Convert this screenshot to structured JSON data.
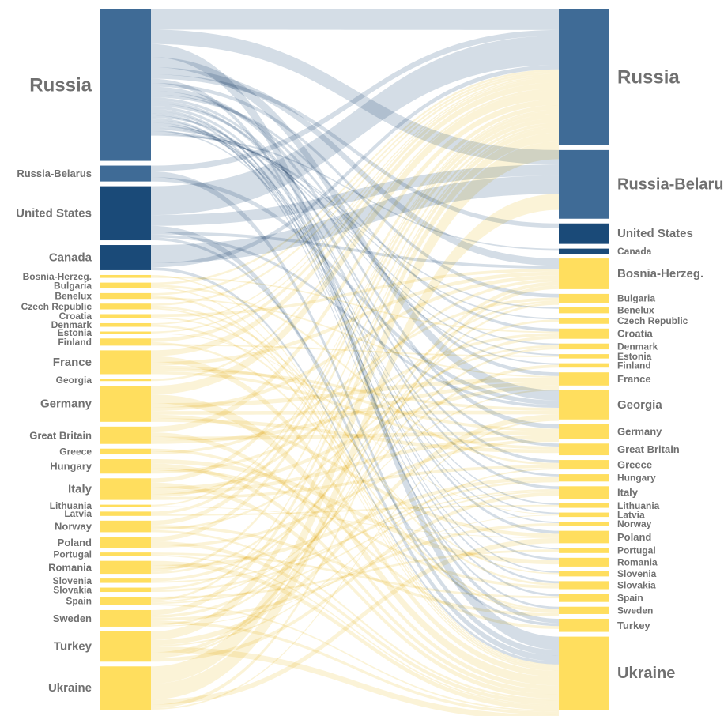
{
  "colors": {
    "russia_bloc": "#3F6B96",
    "nato_west": "#1A4A78",
    "others": "#FFDE5E",
    "flow_blue": "#9FB4C8",
    "flow_yellow": "#F6E3A0",
    "label": "#707070"
  },
  "source_nodes": [
    {
      "id": "s-russia",
      "label": "Russia",
      "value": 210,
      "group": "russia_bloc"
    },
    {
      "id": "s-russia-belarus",
      "label": "Russia-Belarus",
      "value": 22,
      "group": "russia_bloc"
    },
    {
      "id": "s-united-states",
      "label": "United States",
      "value": 75,
      "group": "nato_west"
    },
    {
      "id": "s-canada",
      "label": "Canada",
      "value": 35,
      "group": "nato_west"
    },
    {
      "id": "s-bosnia",
      "label": "Bosnia-Herzeg.",
      "value": 4,
      "group": "others"
    },
    {
      "id": "s-bulgaria",
      "label": "Bulgaria",
      "value": 8,
      "group": "others"
    },
    {
      "id": "s-benelux",
      "label": "Benelux",
      "value": 8,
      "group": "others"
    },
    {
      "id": "s-czech",
      "label": "Czech Republic",
      "value": 8,
      "group": "others"
    },
    {
      "id": "s-croatia",
      "label": "Croatia",
      "value": 6,
      "group": "others"
    },
    {
      "id": "s-denmark",
      "label": "Denmark",
      "value": 5,
      "group": "others"
    },
    {
      "id": "s-estonia",
      "label": "Estonia",
      "value": 3,
      "group": "others"
    },
    {
      "id": "s-finland",
      "label": "Finland",
      "value": 10,
      "group": "others"
    },
    {
      "id": "s-france",
      "label": "France",
      "value": 33,
      "group": "others"
    },
    {
      "id": "s-georgia",
      "label": "Georgia",
      "value": 3,
      "group": "others"
    },
    {
      "id": "s-germany",
      "label": "Germany",
      "value": 50,
      "group": "others"
    },
    {
      "id": "s-great-britain",
      "label": "Great Britain",
      "value": 24,
      "group": "others"
    },
    {
      "id": "s-greece",
      "label": "Greece",
      "value": 8,
      "group": "others"
    },
    {
      "id": "s-hungary",
      "label": "Hungary",
      "value": 20,
      "group": "others"
    },
    {
      "id": "s-italy",
      "label": "Italy",
      "value": 30,
      "group": "others"
    },
    {
      "id": "s-lithuania",
      "label": "Lithuania",
      "value": 3,
      "group": "others"
    },
    {
      "id": "s-latvia",
      "label": "Latvia",
      "value": 6,
      "group": "others"
    },
    {
      "id": "s-norway",
      "label": "Norway",
      "value": 16,
      "group": "others"
    },
    {
      "id": "s-poland",
      "label": "Poland",
      "value": 15,
      "group": "others"
    },
    {
      "id": "s-portugal",
      "label": "Portugal",
      "value": 5,
      "group": "others"
    },
    {
      "id": "s-romania",
      "label": "Romania",
      "value": 18,
      "group": "others"
    },
    {
      "id": "s-slovenia",
      "label": "Slovenia",
      "value": 6,
      "group": "others"
    },
    {
      "id": "s-slovakia",
      "label": "Slovakia",
      "value": 6,
      "group": "others"
    },
    {
      "id": "s-spain",
      "label": "Spain",
      "value": 12,
      "group": "others"
    },
    {
      "id": "s-sweden",
      "label": "Sweden",
      "value": 23,
      "group": "others"
    },
    {
      "id": "s-turkey",
      "label": "Turkey",
      "value": 42,
      "group": "others"
    },
    {
      "id": "s-ukraine",
      "label": "Ukraine",
      "value": 60,
      "group": "others"
    }
  ],
  "target_nodes": [
    {
      "id": "t-russia",
      "label": "Russia",
      "value": 186,
      "group": "russia_bloc"
    },
    {
      "id": "t-russia-belarus",
      "label": "Russia-Belarus",
      "value": 94,
      "group": "russia_bloc"
    },
    {
      "id": "t-united-states",
      "label": "United States",
      "value": 28,
      "group": "nato_west"
    },
    {
      "id": "t-canada",
      "label": "Canada",
      "value": 7,
      "group": "nato_west"
    },
    {
      "id": "t-bosnia",
      "label": "Bosnia-Herzeg.",
      "value": 42,
      "group": "others"
    },
    {
      "id": "t-bulgaria",
      "label": "Bulgaria",
      "value": 12,
      "group": "others"
    },
    {
      "id": "t-benelux",
      "label": "Benelux",
      "value": 8,
      "group": "others"
    },
    {
      "id": "t-czech",
      "label": "Czech Republic",
      "value": 8,
      "group": "others"
    },
    {
      "id": "t-croatia",
      "label": "Croatia",
      "value": 14,
      "group": "others"
    },
    {
      "id": "t-denmark",
      "label": "Denmark",
      "value": 8,
      "group": "others"
    },
    {
      "id": "t-estonia",
      "label": "Estonia",
      "value": 6,
      "group": "others"
    },
    {
      "id": "t-finland",
      "label": "Finland",
      "value": 6,
      "group": "others"
    },
    {
      "id": "t-france",
      "label": "France",
      "value": 18,
      "group": "others"
    },
    {
      "id": "t-georgia",
      "label": "Georgia",
      "value": 40,
      "group": "others"
    },
    {
      "id": "t-germany",
      "label": "Germany",
      "value": 20,
      "group": "others"
    },
    {
      "id": "t-great-britain",
      "label": "Great Britain",
      "value": 16,
      "group": "others"
    },
    {
      "id": "t-greece",
      "label": "Greece",
      "value": 13,
      "group": "others"
    },
    {
      "id": "t-hungary",
      "label": "Hungary",
      "value": 10,
      "group": "others"
    },
    {
      "id": "t-italy",
      "label": "Italy",
      "value": 17,
      "group": "others"
    },
    {
      "id": "t-lithuania",
      "label": "Lithuania",
      "value": 6,
      "group": "others"
    },
    {
      "id": "t-latvia",
      "label": "Latvia",
      "value": 6,
      "group": "others"
    },
    {
      "id": "t-norway",
      "label": "Norway",
      "value": 6,
      "group": "others"
    },
    {
      "id": "t-poland",
      "label": "Poland",
      "value": 17,
      "group": "others"
    },
    {
      "id": "t-portugal",
      "label": "Portugal",
      "value": 7,
      "group": "others"
    },
    {
      "id": "t-romania",
      "label": "Romania",
      "value": 12,
      "group": "others"
    },
    {
      "id": "t-slovenia",
      "label": "Slovenia",
      "value": 7,
      "group": "others"
    },
    {
      "id": "t-slovakia",
      "label": "Slovakia",
      "value": 11,
      "group": "others"
    },
    {
      "id": "t-spain",
      "label": "Spain",
      "value": 11,
      "group": "others"
    },
    {
      "id": "t-sweden",
      "label": "Sweden",
      "value": 10,
      "group": "others"
    },
    {
      "id": "t-turkey",
      "label": "Turkey",
      "value": 18,
      "group": "others"
    },
    {
      "id": "t-ukraine",
      "label": "Ukraine",
      "value": 100,
      "group": "others"
    }
  ],
  "links": [
    {
      "source": "s-russia",
      "target": "t-russia",
      "value": 28
    },
    {
      "source": "s-russia",
      "target": "t-russia-belarus",
      "value": 20
    },
    {
      "source": "s-russia",
      "target": "t-ukraine",
      "value": 18
    },
    {
      "source": "s-russia",
      "target": "t-georgia",
      "value": 14
    },
    {
      "source": "s-russia",
      "target": "t-bosnia",
      "value": 10
    },
    {
      "source": "s-russia",
      "target": "t-united-states",
      "value": 6
    },
    {
      "source": "s-russia",
      "target": "t-turkey",
      "value": 6
    },
    {
      "source": "s-russia",
      "target": "t-bulgaria",
      "value": 5
    },
    {
      "source": "s-russia",
      "target": "t-germany",
      "value": 6
    },
    {
      "source": "s-russia",
      "target": "t-france",
      "value": 5
    },
    {
      "source": "s-russia",
      "target": "t-croatia",
      "value": 4
    },
    {
      "source": "s-russia",
      "target": "t-greece",
      "value": 4
    },
    {
      "source": "s-russia",
      "target": "t-italy",
      "value": 4
    },
    {
      "source": "s-russia",
      "target": "t-great-britain",
      "value": 4
    },
    {
      "source": "s-russia",
      "target": "t-poland",
      "value": 4
    },
    {
      "source": "s-russia",
      "target": "t-slovakia",
      "value": 3
    },
    {
      "source": "s-russia",
      "target": "t-romania",
      "value": 3
    },
    {
      "source": "s-russia",
      "target": "t-spain",
      "value": 3
    },
    {
      "source": "s-russia",
      "target": "t-hungary",
      "value": 3
    },
    {
      "source": "s-russia",
      "target": "t-sweden",
      "value": 3
    },
    {
      "source": "s-russia",
      "target": "t-portugal",
      "value": 2
    },
    {
      "source": "s-russia",
      "target": "t-slovenia",
      "value": 2
    },
    {
      "source": "s-russia",
      "target": "t-lithuania",
      "value": 2
    },
    {
      "source": "s-russia",
      "target": "t-latvia",
      "value": 2
    },
    {
      "source": "s-russia",
      "target": "t-estonia",
      "value": 2
    },
    {
      "source": "s-russia",
      "target": "t-finland",
      "value": 2
    },
    {
      "source": "s-russia",
      "target": "t-denmark",
      "value": 2
    },
    {
      "source": "s-russia",
      "target": "t-norway",
      "value": 2
    },
    {
      "source": "s-russia",
      "target": "t-czech",
      "value": 2
    },
    {
      "source": "s-russia",
      "target": "t-benelux",
      "value": 2
    },
    {
      "source": "s-russia",
      "target": "t-canada",
      "value": 2
    },
    {
      "source": "s-russia-belarus",
      "target": "t-russia",
      "value": 8
    },
    {
      "source": "s-russia-belarus",
      "target": "t-ukraine",
      "value": 8
    },
    {
      "source": "s-russia-belarus",
      "target": "t-georgia",
      "value": 6
    },
    {
      "source": "s-united-states",
      "target": "t-russia",
      "value": 40
    },
    {
      "source": "s-united-states",
      "target": "t-russia-belarus",
      "value": 15
    },
    {
      "source": "s-united-states",
      "target": "t-ukraine",
      "value": 8
    },
    {
      "source": "s-united-states",
      "target": "t-bosnia",
      "value": 4
    },
    {
      "source": "s-united-states",
      "target": "t-georgia",
      "value": 4
    },
    {
      "source": "s-united-states",
      "target": "t-turkey",
      "value": 4
    },
    {
      "source": "s-canada",
      "target": "t-russia-belarus",
      "value": 25
    },
    {
      "source": "s-canada",
      "target": "t-russia",
      "value": 6
    },
    {
      "source": "s-canada",
      "target": "t-ukraine",
      "value": 4
    },
    {
      "source": "s-bosnia",
      "target": "t-ukraine",
      "value": 2
    },
    {
      "source": "s-bosnia",
      "target": "t-croatia",
      "value": 2
    },
    {
      "source": "s-bulgaria",
      "target": "t-russia",
      "value": 3
    },
    {
      "source": "s-bulgaria",
      "target": "t-greece",
      "value": 3
    },
    {
      "source": "s-bulgaria",
      "target": "t-ukraine",
      "value": 2
    },
    {
      "source": "s-benelux",
      "target": "t-russia",
      "value": 3
    },
    {
      "source": "s-benelux",
      "target": "t-ukraine",
      "value": 3
    },
    {
      "source": "s-benelux",
      "target": "t-france",
      "value": 2
    },
    {
      "source": "s-czech",
      "target": "t-russia",
      "value": 3
    },
    {
      "source": "s-czech",
      "target": "t-slovakia",
      "value": 3
    },
    {
      "source": "s-czech",
      "target": "t-ukraine",
      "value": 2
    },
    {
      "source": "s-croatia",
      "target": "t-bosnia",
      "value": 4
    },
    {
      "source": "s-croatia",
      "target": "t-slovenia",
      "value": 2
    },
    {
      "source": "s-denmark",
      "target": "t-russia",
      "value": 2
    },
    {
      "source": "s-denmark",
      "target": "t-sweden",
      "value": 3
    },
    {
      "source": "s-estonia",
      "target": "t-russia",
      "value": 2
    },
    {
      "source": "s-estonia",
      "target": "t-latvia",
      "value": 1
    },
    {
      "source": "s-finland",
      "target": "t-russia",
      "value": 5
    },
    {
      "source": "s-finland",
      "target": "t-sweden",
      "value": 3
    },
    {
      "source": "s-finland",
      "target": "t-estonia",
      "value": 2
    },
    {
      "source": "s-france",
      "target": "t-russia",
      "value": 8
    },
    {
      "source": "s-france",
      "target": "t-ukraine",
      "value": 8
    },
    {
      "source": "s-france",
      "target": "t-bosnia",
      "value": 5
    },
    {
      "source": "s-france",
      "target": "t-germany",
      "value": 4
    },
    {
      "source": "s-france",
      "target": "t-georgia",
      "value": 4
    },
    {
      "source": "s-france",
      "target": "t-great-britain",
      "value": 4
    },
    {
      "source": "s-georgia",
      "target": "t-russia",
      "value": 3
    },
    {
      "source": "s-germany",
      "target": "t-russia",
      "value": 12
    },
    {
      "source": "s-germany",
      "target": "t-ukraine",
      "value": 12
    },
    {
      "source": "s-germany",
      "target": "t-france",
      "value": 6
    },
    {
      "source": "s-germany",
      "target": "t-bosnia",
      "value": 5
    },
    {
      "source": "s-germany",
      "target": "t-georgia",
      "value": 5
    },
    {
      "source": "s-germany",
      "target": "t-poland",
      "value": 5
    },
    {
      "source": "s-germany",
      "target": "t-great-britain",
      "value": 5
    },
    {
      "source": "s-great-britain",
      "target": "t-russia",
      "value": 8
    },
    {
      "source": "s-great-britain",
      "target": "t-ukraine",
      "value": 6
    },
    {
      "source": "s-great-britain",
      "target": "t-germany",
      "value": 5
    },
    {
      "source": "s-great-britain",
      "target": "t-france",
      "value": 5
    },
    {
      "source": "s-greece",
      "target": "t-turkey",
      "value": 4
    },
    {
      "source": "s-greece",
      "target": "t-bulgaria",
      "value": 4
    },
    {
      "source": "s-hungary",
      "target": "t-romania",
      "value": 6
    },
    {
      "source": "s-hungary",
      "target": "t-ukraine",
      "value": 6
    },
    {
      "source": "s-hungary",
      "target": "t-slovakia",
      "value": 4
    },
    {
      "source": "s-hungary",
      "target": "t-croatia",
      "value": 4
    },
    {
      "source": "s-italy",
      "target": "t-russia",
      "value": 6
    },
    {
      "source": "s-italy",
      "target": "t-ukraine",
      "value": 6
    },
    {
      "source": "s-italy",
      "target": "t-france",
      "value": 5
    },
    {
      "source": "s-italy",
      "target": "t-germany",
      "value": 5
    },
    {
      "source": "s-italy",
      "target": "t-bosnia",
      "value": 4
    },
    {
      "source": "s-italy",
      "target": "t-greece",
      "value": 4
    },
    {
      "source": "s-lithuania",
      "target": "t-russia",
      "value": 2
    },
    {
      "source": "s-lithuania",
      "target": "t-poland",
      "value": 1
    },
    {
      "source": "s-latvia",
      "target": "t-russia",
      "value": 4
    },
    {
      "source": "s-latvia",
      "target": "t-lithuania",
      "value": 2
    },
    {
      "source": "s-norway",
      "target": "t-russia",
      "value": 6
    },
    {
      "source": "s-norway",
      "target": "t-sweden",
      "value": 4
    },
    {
      "source": "s-norway",
      "target": "t-denmark",
      "value": 3
    },
    {
      "source": "s-norway",
      "target": "t-ukraine",
      "value": 3
    },
    {
      "source": "s-poland",
      "target": "t-russia",
      "value": 6
    },
    {
      "source": "s-poland",
      "target": "t-ukraine",
      "value": 5
    },
    {
      "source": "s-poland",
      "target": "t-germany",
      "value": 4
    },
    {
      "source": "s-portugal",
      "target": "t-spain",
      "value": 3
    },
    {
      "source": "s-portugal",
      "target": "t-ukraine",
      "value": 2
    },
    {
      "source": "s-romania",
      "target": "t-ukraine",
      "value": 6
    },
    {
      "source": "s-romania",
      "target": "t-hungary",
      "value": 5
    },
    {
      "source": "s-romania",
      "target": "t-russia",
      "value": 4
    },
    {
      "source": "s-romania",
      "target": "t-bulgaria",
      "value": 3
    },
    {
      "source": "s-slovenia",
      "target": "t-croatia",
      "value": 4
    },
    {
      "source": "s-slovenia",
      "target": "t-italy",
      "value": 2
    },
    {
      "source": "s-slovakia",
      "target": "t-czech",
      "value": 3
    },
    {
      "source": "s-slovakia",
      "target": "t-hungary",
      "value": 3
    },
    {
      "source": "s-spain",
      "target": "t-portugal",
      "value": 3
    },
    {
      "source": "s-spain",
      "target": "t-russia",
      "value": 3
    },
    {
      "source": "s-spain",
      "target": "t-france",
      "value": 2
    },
    {
      "source": "s-spain",
      "target": "t-italy",
      "value": 2
    },
    {
      "source": "s-spain",
      "target": "t-ukraine",
      "value": 2
    },
    {
      "source": "s-sweden",
      "target": "t-russia",
      "value": 7
    },
    {
      "source": "s-sweden",
      "target": "t-finland",
      "value": 4
    },
    {
      "source": "s-sweden",
      "target": "t-norway",
      "value": 4
    },
    {
      "source": "s-sweden",
      "target": "t-ukraine",
      "value": 4
    },
    {
      "source": "s-sweden",
      "target": "t-denmark",
      "value": 3
    },
    {
      "source": "s-sweden",
      "target": "t-latvia",
      "value": 1
    },
    {
      "source": "s-turkey",
      "target": "t-russia",
      "value": 12
    },
    {
      "source": "s-turkey",
      "target": "t-georgia",
      "value": 7
    },
    {
      "source": "s-turkey",
      "target": "t-greece",
      "value": 2
    },
    {
      "source": "s-turkey",
      "target": "t-ukraine",
      "value": 8
    },
    {
      "source": "s-turkey",
      "target": "t-bosnia",
      "value": 5
    },
    {
      "source": "s-turkey",
      "target": "t-bulgaria",
      "value": 3
    },
    {
      "source": "s-turkey",
      "target": "t-italy",
      "value": 5
    },
    {
      "source": "s-ukraine",
      "target": "t-russia",
      "value": 24
    },
    {
      "source": "s-ukraine",
      "target": "t-russia-belarus",
      "value": 22
    },
    {
      "source": "s-ukraine",
      "target": "t-poland",
      "value": 7
    },
    {
      "source": "s-ukraine",
      "target": "t-bosnia",
      "value": 5
    },
    {
      "source": "s-ukraine",
      "target": "t-georgia",
      "value": 2
    }
  ]
}
